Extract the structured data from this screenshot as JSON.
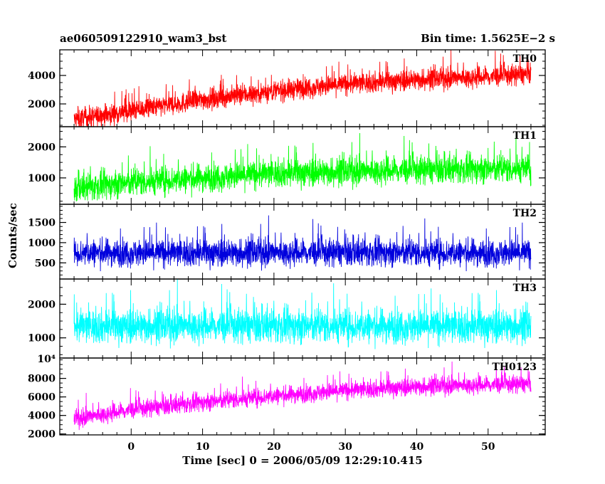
{
  "header": {
    "title": "ae060509122910_wam3_bst",
    "bin_time": "Bin time: 1.5625E−2 s"
  },
  "chart_data": {
    "type": "line",
    "title": "ae060509122910_wam3_bst",
    "subtitle": "Bin time: 1.5625E−2 s",
    "xlabel": "Time [sec] 0 = 2006/05/09 12:29:10.415",
    "ylabel": "Counts/sec",
    "xlim": [
      -10,
      58
    ],
    "x_ticks": [
      0,
      10,
      20,
      30,
      40,
      50
    ],
    "x_data_range": [
      -8,
      56
    ],
    "bin_time_s": 0.015625,
    "panels": [
      {
        "name": "TH0",
        "color": "#ff0000",
        "ylim": [
          400,
          5800
        ],
        "yticks": [
          2000,
          4000
        ],
        "ytick_labels": [
          "2000",
          "4000"
        ],
        "approx_points": [
          [
            -8,
            900
          ],
          [
            0,
            1500
          ],
          [
            10,
            2300
          ],
          [
            20,
            2900
          ],
          [
            30,
            3400
          ],
          [
            40,
            3700
          ],
          [
            50,
            3900
          ],
          [
            56,
            4100
          ]
        ],
        "spread": 650
      },
      {
        "name": "TH1",
        "color": "#00ff00",
        "ylim": [
          150,
          2650
        ],
        "yticks": [
          1000,
          2000
        ],
        "ytick_labels": [
          "1000",
          "2000"
        ],
        "approx_points": [
          [
            -8,
            650
          ],
          [
            0,
            850
          ],
          [
            10,
            1000
          ],
          [
            20,
            1150
          ],
          [
            30,
            1200
          ],
          [
            40,
            1250
          ],
          [
            56,
            1300
          ]
        ],
        "spread": 400
      },
      {
        "name": "TH2",
        "color": "#0000dd",
        "ylim": [
          100,
          1950
        ],
        "yticks": [
          500,
          1000,
          1500
        ],
        "ytick_labels": [
          "500",
          "1000",
          "1500"
        ],
        "approx_points": [
          [
            -8,
            750
          ],
          [
            56,
            750
          ]
        ],
        "spread": 300
      },
      {
        "name": "TH3",
        "color": "#00ffff",
        "ylim": [
          400,
          2750
        ],
        "yticks": [
          1000,
          2000
        ],
        "ytick_labels": [
          "1000",
          "2000"
        ],
        "approx_points": [
          [
            -8,
            1350
          ],
          [
            56,
            1350
          ]
        ],
        "spread": 450
      },
      {
        "name": "TH0123",
        "color": "#ff00ff",
        "ylim": [
          1900,
          10200
        ],
        "yticks": [
          2000,
          4000,
          6000,
          8000
        ],
        "ytick_labels": [
          "2000",
          "4000",
          "6000",
          "8000"
        ],
        "corner_label": "10⁴",
        "approx_points": [
          [
            -8,
            3600
          ],
          [
            0,
            4600
          ],
          [
            10,
            5400
          ],
          [
            20,
            6100
          ],
          [
            30,
            6700
          ],
          [
            40,
            7100
          ],
          [
            50,
            7300
          ],
          [
            56,
            7400
          ]
        ],
        "spread": 850
      }
    ],
    "grid": false,
    "legend": "none"
  }
}
